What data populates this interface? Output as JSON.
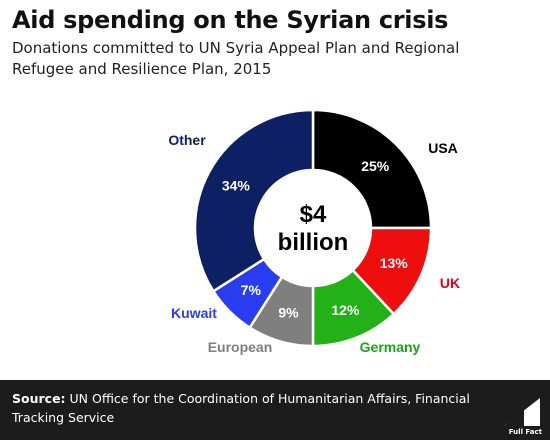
{
  "header": {
    "title": "Aid spending on the Syrian crisis",
    "subtitle": "Donations committed to UN Syria Appeal Plan and Regional Refugee and Resilience Plan, 2015"
  },
  "chart_data": {
    "type": "pie",
    "variant": "donut",
    "center_label": [
      "$4",
      "billion"
    ],
    "slices": [
      {
        "label": "USA",
        "value": 25,
        "value_label": "25%",
        "color": "#000000",
        "label_color": "#000000"
      },
      {
        "label": "UK",
        "value": 13,
        "value_label": "13%",
        "color": "#ee0e0e",
        "label_color": "#e2001a"
      },
      {
        "label": "Germany",
        "value": 12,
        "value_label": "12%",
        "color": "#22b217",
        "label_color": "#1aa51a"
      },
      {
        "label": "European",
        "value": 9,
        "value_label": "9%",
        "color": "#7f7f7f",
        "label_color": "#7f7f7f"
      },
      {
        "label": "Kuwait",
        "value": 7,
        "value_label": "7%",
        "color": "#2a3cf0",
        "label_color": "#2a3cf0"
      },
      {
        "label": "Other",
        "value": 34,
        "value_label": "34%",
        "color": "#0d2064",
        "label_color": "#0d2064"
      }
    ]
  },
  "footer": {
    "source_label": "Source:",
    "source_text": "UN Office for the Coordination of Humanitarian Affairs, Financial Tracking Service",
    "brand": "Full Fact"
  },
  "colors": {
    "footer_bg": "#1c1c1c",
    "slice_label_text": "#ffffff"
  }
}
